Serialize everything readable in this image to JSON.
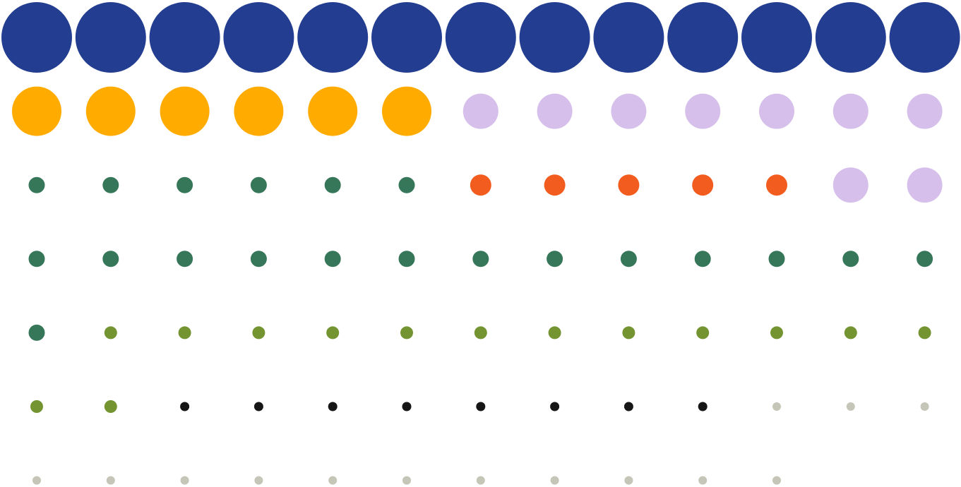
{
  "chart_data": {
    "type": "scatter",
    "title": "",
    "xlabel": "",
    "ylabel": "",
    "grid": false,
    "legend": "none",
    "columns": 13,
    "sequence": [
      {
        "color": "#233d91",
        "level": 1.0,
        "count": 13
      },
      {
        "color": "#ffab00",
        "level": 0.7,
        "count": 6
      },
      {
        "color": "#d6bfea",
        "level": 0.5,
        "count": 7
      },
      {
        "color": "#36775a",
        "level": 0.23,
        "count": 6
      },
      {
        "color": "#f25c1f",
        "level": 0.3,
        "count": 5
      },
      {
        "color": "#d6bfea",
        "level": 0.5,
        "count": 2
      },
      {
        "color": "#36775a",
        "level": 0.23,
        "count": 14
      },
      {
        "color": "#739431",
        "level": 0.18,
        "count": 14
      },
      {
        "color": "#161616",
        "level": 0.13,
        "count": 8
      },
      {
        "color": "#c5c6b8",
        "level": 0.12,
        "count": 3
      },
      {
        "color": "#c5c6b8",
        "level": 0.12,
        "count": 11
      }
    ]
  }
}
